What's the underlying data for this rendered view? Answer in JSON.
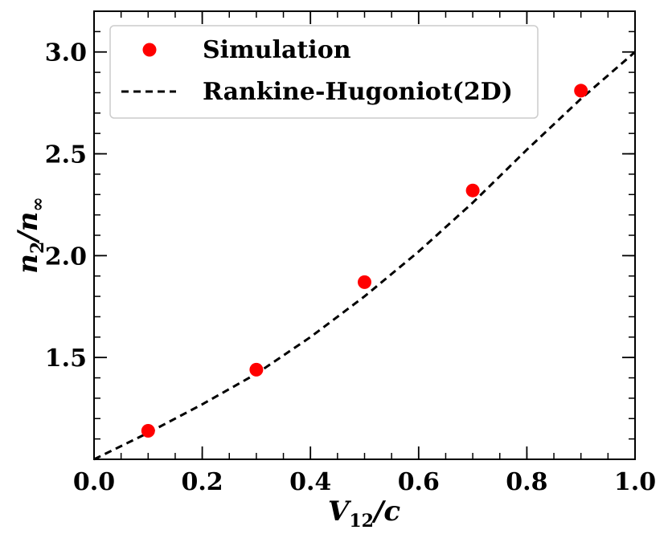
{
  "chart_data": {
    "type": "scatter",
    "title": "",
    "xlabel": "V",
    "xlabel_sub": "12",
    "xlabel_suffix": "/c",
    "ylabel": "n",
    "ylabel_sub": "2",
    "ylabel_mid": "/n",
    "ylabel_sub2": "∞",
    "xlim": [
      0.0,
      1.0
    ],
    "ylim": [
      1.0,
      3.2
    ],
    "xticks": [
      {
        "value": 0.0,
        "label": "0.0"
      },
      {
        "value": 0.2,
        "label": "0.2"
      },
      {
        "value": 0.4,
        "label": "0.4"
      },
      {
        "value": 0.6,
        "label": "0.6"
      },
      {
        "value": 0.8,
        "label": "0.8"
      },
      {
        "value": 1.0,
        "label": "1.0"
      }
    ],
    "yticks": [
      {
        "value": 1.5,
        "label": "1.5"
      },
      {
        "value": 2.0,
        "label": "2.0"
      },
      {
        "value": 2.5,
        "label": "2.5"
      },
      {
        "value": 3.0,
        "label": "3.0"
      }
    ],
    "x_minor_step": 0.05,
    "y_minor_step": 0.1,
    "grid": false,
    "legend_position": "top-left",
    "series": [
      {
        "name": "Simulation",
        "kind": "scatter",
        "color": "#ff0000",
        "x": [
          0.1,
          0.3,
          0.5,
          0.7,
          0.9
        ],
        "y": [
          1.14,
          1.44,
          1.87,
          2.32,
          2.81
        ]
      },
      {
        "name": "Rankine-Hugoniot(2D)",
        "kind": "line",
        "style": "dashed",
        "color": "#000000",
        "x": [
          0.0,
          0.1,
          0.2,
          0.3,
          0.4,
          0.5,
          0.6,
          0.7,
          0.8,
          0.9,
          1.0
        ],
        "y": [
          1.0,
          1.13,
          1.27,
          1.42,
          1.6,
          1.8,
          2.02,
          2.26,
          2.52,
          2.77,
          3.0
        ]
      }
    ]
  }
}
